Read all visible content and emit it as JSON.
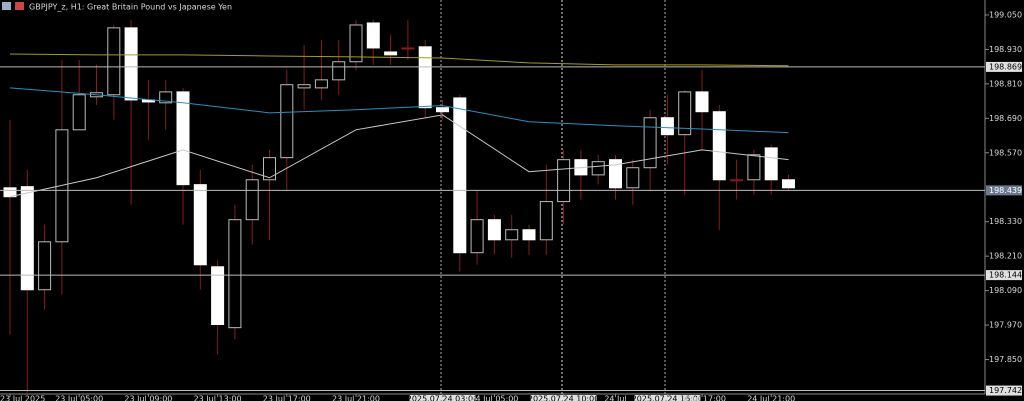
{
  "chart_data": {
    "type": "candlestick",
    "title": "GBPJPY_z, H1:  Great Britain Pound vs Japanese Yen",
    "categories": [
      "23 Jul 2025",
      null,
      null,
      null,
      "23 Jul 05:00",
      null,
      null,
      null,
      "23 Jul 09:00",
      null,
      null,
      null,
      "23 Jul 13:00",
      null,
      null,
      null,
      "23 Jul 17:00",
      null,
      null,
      null,
      "23 Jul 21:00",
      null,
      null,
      null,
      null,
      "2025.07.24 03:00",
      null,
      null,
      "24 Jul 05:00",
      null,
      null,
      null,
      "2025.07.24 10:00",
      null,
      null,
      "24 Jul",
      null,
      null,
      "2025.07.24 16:00",
      null,
      "24 Jul 17:00",
      null,
      null,
      null,
      "24 Jul 21:00",
      null
    ],
    "open": [
      198.448,
      198.452,
      198.093,
      198.26,
      198.65,
      198.765,
      198.772,
      199.005,
      198.754,
      198.744,
      198.782,
      198.459,
      198.173,
      197.961,
      198.337,
      198.476,
      198.553,
      198.796,
      198.796,
      198.824,
      198.887,
      199.022,
      198.921,
      198.935,
      198.939,
      198.727,
      198.761,
      198.222,
      198.337,
      198.267,
      198.302,
      198.267,
      198.4,
      198.546,
      198.493,
      198.546,
      198.448,
      198.518,
      198.692,
      198.633,
      198.782,
      198.713,
      198.476,
      198.476,
      198.587,
      198.476
    ],
    "high": [
      198.685,
      198.511,
      198.32,
      198.893,
      198.893,
      198.876,
      199.015,
      199.033,
      198.824,
      198.824,
      198.796,
      198.511,
      198.198,
      198.389,
      198.528,
      198.58,
      198.859,
      198.946,
      198.963,
      198.963,
      199.033,
      199.033,
      198.98,
      199.033,
      198.963,
      198.754,
      198.772,
      198.441,
      198.354,
      198.354,
      198.32,
      198.528,
      198.58,
      198.58,
      198.563,
      198.563,
      198.546,
      198.72,
      198.772,
      198.789,
      198.859,
      198.737,
      198.546,
      198.58,
      198.598,
      198.493
    ],
    "low": [
      197.937,
      197.735,
      198.024,
      198.076,
      198.65,
      198.737,
      198.685,
      198.389,
      198.615,
      198.65,
      198.32,
      198.093,
      197.867,
      197.92,
      198.25,
      198.267,
      198.441,
      198.72,
      198.754,
      198.772,
      198.859,
      198.876,
      198.876,
      198.893,
      198.692,
      198.685,
      198.156,
      198.18,
      198.215,
      198.205,
      198.215,
      198.215,
      198.32,
      198.407,
      198.459,
      198.407,
      198.389,
      198.441,
      198.528,
      198.424,
      198.58,
      198.302,
      198.407,
      198.424,
      198.424,
      198.441
    ],
    "close": [
      198.417,
      198.093,
      198.26,
      198.65,
      198.772,
      198.779,
      199.005,
      198.754,
      198.747,
      198.782,
      198.459,
      198.18,
      197.972,
      198.337,
      198.476,
      198.553,
      198.807,
      198.807,
      198.824,
      198.887,
      199.015,
      198.935,
      198.911,
      198.935,
      198.727,
      198.713,
      198.222,
      198.337,
      198.267,
      198.302,
      198.267,
      198.4,
      198.546,
      198.493,
      198.539,
      198.448,
      198.518,
      198.692,
      198.633,
      198.782,
      198.713,
      198.476,
      198.476,
      198.563,
      198.476,
      198.448
    ],
    "bull_color": "#000000",
    "bear_color": "#ffffff",
    "wick_color": "#8b1a1a",
    "series": [
      {
        "color": "#a89a1c",
        "x": [
          0,
          5,
          10,
          15,
          20,
          25,
          30,
          35,
          40,
          45
        ],
        "values": [
          198.914,
          198.911,
          198.911,
          198.907,
          198.904,
          198.9,
          198.883,
          198.876,
          198.876,
          198.873
        ]
      },
      {
        "color": "#2a8fc0",
        "x": [
          0,
          5,
          10,
          15,
          20,
          25,
          30,
          35,
          40,
          45
        ],
        "values": [
          198.796,
          198.772,
          198.744,
          198.709,
          198.72,
          198.734,
          198.678,
          198.664,
          198.653,
          198.64
        ]
      },
      {
        "color": "#c8c8c8",
        "x": [
          0,
          5,
          10,
          15,
          20,
          25,
          30,
          35,
          40,
          45
        ],
        "values": [
          198.417,
          198.483,
          198.58,
          198.483,
          198.65,
          198.702,
          198.504,
          198.528,
          198.58,
          198.546
        ]
      }
    ],
    "levels": [
      198.869,
      198.439,
      198.144,
      197.742
    ],
    "ylim": [
      197.73,
      199.102
    ],
    "yticks": [
      {
        "value": 199.05,
        "label": "199.050"
      },
      {
        "value": 198.93,
        "label": "198.930"
      },
      {
        "value": 198.81,
        "label": "198.810"
      },
      {
        "value": 198.69,
        "label": "198.690"
      },
      {
        "value": 198.57,
        "label": "198.570"
      },
      {
        "value": 198.33,
        "label": "198.330"
      },
      {
        "value": 198.21,
        "label": "198.210"
      },
      {
        "value": 198.09,
        "label": "198.090"
      },
      {
        "value": 197.97,
        "label": "197.970"
      },
      {
        "value": 197.85,
        "label": "197.850"
      }
    ]
  }
}
